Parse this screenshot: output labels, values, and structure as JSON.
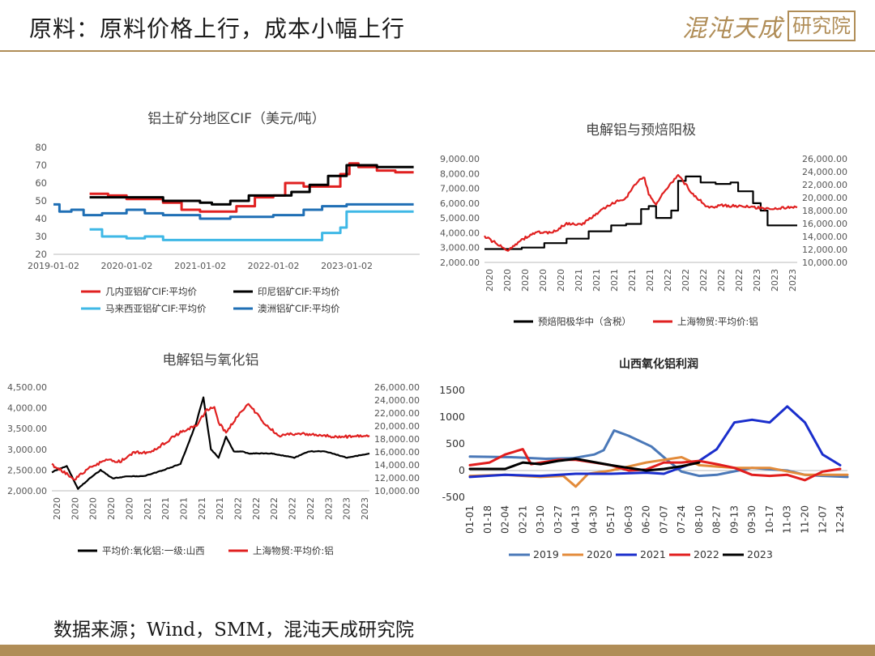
{
  "header": {
    "title": "原料：原料价格上行，成本小幅上行",
    "logo_script": "混沌天成",
    "logo_box": "研究院"
  },
  "footer": {
    "source": "数据来源；Wind，SMM，混沌天成研究院"
  },
  "colors": {
    "gold": "#b08d57",
    "red": "#e02020",
    "black": "#000000",
    "lightblue": "#3fb8e6",
    "blue": "#1f6fb5",
    "y2019": "#4a78b8",
    "y2020": "#e38b3a",
    "y2021": "#1a2ecc",
    "y2022": "#e11d1d",
    "y2023": "#000000"
  },
  "chart_data": [
    {
      "id": "bauxite",
      "type": "line",
      "title": "铝土矿分地区CIF（美元/吨）",
      "xlabel": "",
      "ylabel": "",
      "x_range": [
        "2019-01-02",
        "2023-12-31"
      ],
      "x_ticks": [
        "2019-01-02",
        "2020-01-02",
        "2021-01-02",
        "2022-01-02",
        "2023-01-02"
      ],
      "ylim": [
        20,
        80
      ],
      "y_ticks": [
        "20",
        "30",
        "40",
        "50",
        "60",
        "70",
        "80"
      ],
      "legend_position": "bottom",
      "series": [
        {
          "name": "几内亚铝矿CIF:平均价",
          "color": "#e02020",
          "x": [
            "2019-07-01",
            "2019-10-01",
            "2020-01-01",
            "2020-04-01",
            "2020-07-01",
            "2020-10-01",
            "2021-01-01",
            "2021-04-01",
            "2021-07-01",
            "2021-10-01",
            "2022-01-01",
            "2022-03-01",
            "2022-06-01",
            "2022-09-01",
            "2022-12-01",
            "2023-01-15",
            "2023-03-01",
            "2023-06-01",
            "2023-09-01",
            "2023-12-01"
          ],
          "y": [
            54,
            53,
            51,
            51,
            49,
            45,
            44,
            44,
            47,
            52,
            53,
            60,
            58,
            58,
            65,
            71,
            69,
            67,
            66,
            66
          ]
        },
        {
          "name": "印尼铝矿CIF:平均价",
          "color": "#000000",
          "x": [
            "2019-07-01",
            "2020-01-01",
            "2020-07-01",
            "2021-01-01",
            "2021-03-01",
            "2021-06-01",
            "2021-09-01",
            "2022-01-01",
            "2022-04-01",
            "2022-07-01",
            "2022-10-01",
            "2023-01-01",
            "2023-06-01",
            "2023-12-01"
          ],
          "y": [
            52,
            52,
            50,
            49,
            48,
            50,
            53,
            53,
            55,
            59,
            64,
            70,
            69,
            69
          ]
        },
        {
          "name": "马来西亚铝矿CIF:平均价",
          "color": "#3fb8e6",
          "x": [
            "2019-07-01",
            "2019-09-01",
            "2020-01-01",
            "2020-04-01",
            "2020-07-01",
            "2021-01-01",
            "2021-07-01",
            "2022-01-01",
            "2022-06-01",
            "2022-09-01",
            "2022-12-01",
            "2023-01-01",
            "2023-12-01"
          ],
          "y": [
            34,
            30,
            29,
            30,
            28,
            28,
            28,
            28,
            28,
            32,
            35,
            44,
            44
          ]
        },
        {
          "name": "澳洲铝矿CIF:平均价",
          "color": "#1f6fb5",
          "x": [
            "2019-01-02",
            "2019-02-01",
            "2019-04-01",
            "2019-06-01",
            "2019-09-01",
            "2020-01-01",
            "2020-04-01",
            "2020-07-01",
            "2020-10-01",
            "2021-01-01",
            "2021-06-01",
            "2022-01-01",
            "2022-06-01",
            "2022-09-01",
            "2023-01-01",
            "2023-12-01"
          ],
          "y": [
            48,
            44,
            45,
            42,
            43,
            45,
            43,
            42,
            42,
            40,
            41,
            42,
            45,
            47,
            48,
            48
          ]
        }
      ]
    },
    {
      "id": "anode",
      "type": "line",
      "title": "电解铝与预焙阳极",
      "xlabel": "",
      "ylabel": "",
      "x_range": [
        "2020-01-01",
        "2023-06-30"
      ],
      "x_ticks": [
        "2020",
        "2020",
        "2020",
        "2020",
        "2020",
        "2021",
        "2021",
        "2021",
        "2021",
        "2021",
        "2022",
        "2022",
        "2022",
        "2022",
        "2022",
        "2023",
        "2023",
        "2023"
      ],
      "y_left": {
        "lim": [
          2000,
          9000
        ],
        "ticks": [
          "2,000.00",
          "3,000.00",
          "4,000.00",
          "5,000.00",
          "6,000.00",
          "7,000.00",
          "8,000.00",
          "9,000.00"
        ]
      },
      "y_right": {
        "lim": [
          10000,
          26000
        ],
        "ticks": [
          "10,000.00",
          "12,000.00",
          "14,000.00",
          "16,000.00",
          "18,000.00",
          "20,000.00",
          "22,000.00",
          "24,000.00",
          "26,000.00"
        ]
      },
      "legend_position": "bottom",
      "series": [
        {
          "name": "预焙阳极华中（含税）",
          "color": "#000000",
          "axis": "left",
          "x": [
            "2020-01-01",
            "2020-03-01",
            "2020-06-01",
            "2020-09-01",
            "2020-12-01",
            "2021-03-01",
            "2021-06-01",
            "2021-08-01",
            "2021-10-01",
            "2021-11-01",
            "2021-12-01",
            "2022-02-01",
            "2022-03-01",
            "2022-04-01",
            "2022-06-01",
            "2022-08-01",
            "2022-10-01",
            "2022-11-01",
            "2023-01-01",
            "2023-02-01",
            "2023-03-01",
            "2023-06-30"
          ],
          "y": [
            2900,
            2900,
            3000,
            3300,
            3600,
            4100,
            4500,
            4600,
            5600,
            5800,
            5000,
            5500,
            7500,
            7800,
            7400,
            7300,
            7400,
            6800,
            6000,
            5500,
            4500,
            4500
          ]
        },
        {
          "name": "上海物贸:平均价:铝",
          "color": "#e02020",
          "axis": "right",
          "x": [
            "2020-01-01",
            "2020-02-15",
            "2020-04-01",
            "2020-06-01",
            "2020-08-01",
            "2020-10-01",
            "2020-12-01",
            "2021-02-01",
            "2021-04-01",
            "2021-06-01",
            "2021-08-01",
            "2021-09-15",
            "2021-10-15",
            "2021-11-01",
            "2021-12-01",
            "2022-01-15",
            "2022-03-01",
            "2022-04-01",
            "2022-05-01",
            "2022-07-01",
            "2022-09-01",
            "2022-11-01",
            "2023-01-01",
            "2023-03-01",
            "2023-06-30"
          ],
          "y": [
            14000,
            13000,
            11800,
            13500,
            14700,
            14500,
            16000,
            15800,
            17500,
            19000,
            20000,
            22500,
            23000,
            20500,
            19000,
            21500,
            23500,
            22000,
            20500,
            18500,
            18800,
            18700,
            18500,
            18300,
            18500
          ]
        }
      ]
    },
    {
      "id": "alumina",
      "type": "line",
      "title": "电解铝与氧化铝",
      "xlabel": "",
      "ylabel": "",
      "x_range": [
        "2020-01-01",
        "2023-06-30"
      ],
      "x_ticks": [
        "2020",
        "2020",
        "2020",
        "2020",
        "2020",
        "2021",
        "2021",
        "2021",
        "2021",
        "2021",
        "2022",
        "2022",
        "2022",
        "2022",
        "2022",
        "2023",
        "2023",
        "2023"
      ],
      "y_left": {
        "lim": [
          2000,
          4500
        ],
        "ticks": [
          "2,000.00",
          "2,500.00",
          "3,000.00",
          "3,500.00",
          "4,000.00",
          "4,500.00"
        ]
      },
      "y_right": {
        "lim": [
          10000,
          26000
        ],
        "ticks": [
          "10,000.00",
          "12,000.00",
          "14,000.00",
          "16,000.00",
          "18,000.00",
          "20,000.00",
          "22,000.00",
          "24,000.00",
          "26,000.00"
        ]
      },
      "legend_position": "bottom",
      "series": [
        {
          "name": "平均价:氧化铝:一级:山西",
          "color": "#000000",
          "axis": "left",
          "x": [
            "2020-01-01",
            "2020-03-01",
            "2020-04-15",
            "2020-06-01",
            "2020-07-15",
            "2020-09-01",
            "2020-11-01",
            "2021-01-01",
            "2021-03-01",
            "2021-06-01",
            "2021-08-01",
            "2021-09-01",
            "2021-10-01",
            "2021-11-01",
            "2021-12-01",
            "2022-01-01",
            "2022-02-01",
            "2022-03-01",
            "2022-06-01",
            "2022-09-01",
            "2022-11-01",
            "2023-01-01",
            "2023-04-01",
            "2023-06-30"
          ],
          "y": [
            2450,
            2600,
            2050,
            2300,
            2500,
            2300,
            2350,
            2350,
            2450,
            2650,
            3600,
            4250,
            3000,
            2800,
            3300,
            2950,
            2950,
            2900,
            2900,
            2800,
            2950,
            2950,
            2800,
            2900
          ]
        },
        {
          "name": "上海物贸:平均价:铝",
          "color": "#e02020",
          "axis": "right",
          "x": [
            "2020-01-01",
            "2020-02-15",
            "2020-04-01",
            "2020-06-01",
            "2020-08-01",
            "2020-10-01",
            "2020-12-01",
            "2021-02-01",
            "2021-04-01",
            "2021-06-01",
            "2021-08-01",
            "2021-09-15",
            "2021-10-15",
            "2021-11-01",
            "2021-12-01",
            "2022-01-15",
            "2022-03-01",
            "2022-04-01",
            "2022-05-01",
            "2022-07-01",
            "2022-09-01",
            "2022-11-01",
            "2023-01-01",
            "2023-03-01",
            "2023-06-30"
          ],
          "y": [
            14000,
            13000,
            11800,
            13500,
            14700,
            14500,
            16000,
            15800,
            17500,
            19000,
            20000,
            22500,
            23000,
            20500,
            19000,
            21500,
            23500,
            22000,
            20500,
            18500,
            18800,
            18700,
            18500,
            18300,
            18500
          ]
        }
      ]
    },
    {
      "id": "shanxi-profit",
      "type": "line",
      "title": "山西氧化铝利润",
      "xlabel": "",
      "ylabel": "",
      "x_ticks": [
        "01-01",
        "01-18",
        "02-04",
        "02-21",
        "03-10",
        "03-27",
        "04-13",
        "04-30",
        "05-17",
        "06-03",
        "06-20",
        "07-07",
        "07-24",
        "08-10",
        "08-27",
        "09-13",
        "09-30",
        "10-17",
        "11-03",
        "11-20",
        "12-07",
        "12-24"
      ],
      "ylim": [
        -500,
        1500
      ],
      "y_ticks": [
        "-500",
        "0",
        "500",
        "1000",
        "1500"
      ],
      "legend_position": "bottom",
      "series": [
        {
          "name": "2019",
          "color": "#4a78b8",
          "x": [
            "01-01",
            "02-10",
            "03-15",
            "04-10",
            "05-01",
            "05-10",
            "05-20",
            "06-03",
            "06-25",
            "07-10",
            "07-24",
            "08-10",
            "08-27",
            "09-30",
            "11-03",
            "11-20",
            "12-07",
            "12-31"
          ],
          "y": [
            260,
            250,
            220,
            230,
            300,
            380,
            750,
            650,
            450,
            200,
            -20,
            -100,
            -80,
            50,
            0,
            -80,
            -100,
            -120
          ]
        },
        {
          "name": "2020",
          "color": "#e38b3a",
          "x": [
            "01-01",
            "02-04",
            "03-10",
            "04-01",
            "04-13",
            "04-25",
            "05-17",
            "06-20",
            "07-07",
            "07-24",
            "08-10",
            "09-13",
            "10-17",
            "11-20",
            "12-31"
          ],
          "y": [
            -100,
            -80,
            -120,
            -100,
            -300,
            -60,
            0,
            150,
            200,
            250,
            100,
            50,
            50,
            -80,
            -80
          ]
        },
        {
          "name": "2021",
          "color": "#1a2ecc",
          "x": [
            "01-01",
            "02-04",
            "03-10",
            "04-13",
            "05-17",
            "06-20",
            "07-07",
            "07-24",
            "08-10",
            "08-27",
            "09-13",
            "09-30",
            "10-17",
            "11-03",
            "11-20",
            "12-07",
            "12-24"
          ],
          "y": [
            -120,
            -80,
            -100,
            -60,
            -60,
            -40,
            -60,
            60,
            180,
            400,
            900,
            950,
            900,
            1200,
            900,
            300,
            100
          ]
        },
        {
          "name": "2022",
          "color": "#e11d1d",
          "x": [
            "01-01",
            "01-20",
            "02-04",
            "02-21",
            "03-01",
            "03-27",
            "04-13",
            "05-01",
            "05-17",
            "06-03",
            "06-20",
            "07-07",
            "07-24",
            "08-10",
            "08-27",
            "09-13",
            "09-30",
            "10-17",
            "11-03",
            "11-20",
            "12-07",
            "12-24"
          ],
          "y": [
            100,
            150,
            300,
            400,
            120,
            200,
            200,
            150,
            100,
            0,
            20,
            150,
            150,
            180,
            120,
            50,
            -80,
            -100,
            -80,
            -180,
            -20,
            30
          ]
        },
        {
          "name": "2023",
          "color": "#000000",
          "x": [
            "01-01",
            "02-04",
            "02-21",
            "03-10",
            "03-27",
            "04-13",
            "05-17",
            "06-20",
            "07-07",
            "07-24",
            "08-10"
          ],
          "y": [
            30,
            30,
            150,
            120,
            180,
            220,
            100,
            0,
            30,
            80,
            150
          ]
        }
      ]
    }
  ]
}
